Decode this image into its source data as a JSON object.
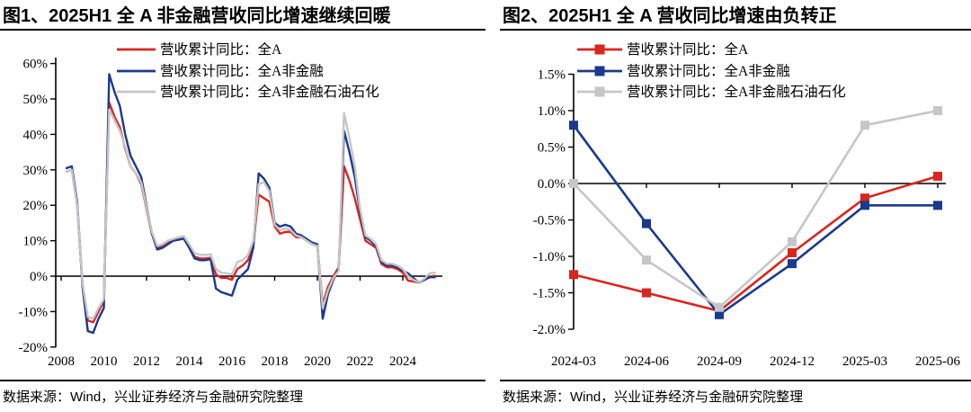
{
  "colors": {
    "red": "#d9261f",
    "blue": "#1b3a8c",
    "gray": "#c6c6c6",
    "axis": "#000000",
    "text": "#000000"
  },
  "panels": {
    "left": {
      "source_note": "数据来源：Wind，兴业证券经济与金融研究院整理"
    },
    "right": {
      "source_note": "数据来源：Wind，兴业证券经济与金融研究院整理"
    }
  },
  "chart_data": [
    {
      "type": "line",
      "title": "图1、2025H1 全 A 非金融营收同比增速继续回暖",
      "x": [
        2008.25,
        2008.5,
        2008.75,
        2009,
        2009.25,
        2009.5,
        2009.75,
        2010,
        2010.25,
        2010.5,
        2010.75,
        2011,
        2011.25,
        2011.5,
        2011.75,
        2012,
        2012.25,
        2012.5,
        2012.75,
        2013,
        2013.25,
        2013.5,
        2013.75,
        2014,
        2014.25,
        2014.5,
        2014.75,
        2015,
        2015.25,
        2015.5,
        2015.75,
        2016,
        2016.25,
        2016.5,
        2016.75,
        2017,
        2017.25,
        2017.5,
        2017.75,
        2018,
        2018.25,
        2018.5,
        2018.75,
        2019,
        2019.25,
        2019.5,
        2019.75,
        2020,
        2020.25,
        2020.5,
        2020.75,
        2021,
        2021.25,
        2021.5,
        2021.75,
        2022,
        2022.25,
        2022.5,
        2022.75,
        2023,
        2023.25,
        2023.5,
        2023.75,
        2024,
        2024.25,
        2024.5,
        2024.75,
        2025,
        2025.25,
        2025.5
      ],
      "series": [
        {
          "name": "营收累计同比：全A",
          "color_key": "red",
          "values": [
            29.5,
            30,
            20,
            -2,
            -12.5,
            -13,
            -10,
            -7,
            49,
            45,
            42,
            36,
            31,
            29,
            26,
            19,
            12,
            8,
            8.5,
            9.5,
            10,
            10.3,
            10.6,
            8,
            5.5,
            5,
            5,
            5.2,
            0.5,
            -0.5,
            -0.5,
            -1,
            2,
            3,
            4.5,
            9,
            23,
            22,
            21,
            14,
            12,
            12.5,
            12.5,
            11,
            11,
            10,
            9,
            8.5,
            -8,
            -3,
            0,
            2.5,
            31,
            27,
            22,
            16,
            10,
            9,
            8,
            3.5,
            2.5,
            2.5,
            2,
            1,
            -1.25,
            -1.5,
            -1.75,
            -0.95,
            -0.2,
            0.1
          ]
        },
        {
          "name": "营收累计同比：全A非金融",
          "color_key": "blue",
          "values": [
            30.5,
            31,
            21,
            -3,
            -15.5,
            -16,
            -12,
            -9,
            57,
            52,
            48,
            40,
            34,
            31,
            28,
            20,
            12,
            7.5,
            8,
            9,
            10,
            10.3,
            10.6,
            8,
            5,
            4.5,
            4.5,
            4.8,
            -3.5,
            -4.5,
            -5,
            -5.5,
            -1,
            0.5,
            2,
            8,
            29,
            27.5,
            25,
            15,
            14,
            14.5,
            14,
            12,
            11.5,
            10.5,
            9.5,
            9,
            -12,
            -5,
            -1,
            2,
            41,
            35,
            28,
            18,
            11,
            10,
            8.5,
            4,
            3,
            3,
            2.5,
            1.5,
            0.8,
            -0.55,
            -1.8,
            -1.1,
            -0.3,
            -0.3
          ]
        },
        {
          "name": "营收累计同比：全A非金融石油石化",
          "color_key": "gray",
          "values": [
            29.5,
            30,
            20,
            -2,
            -11.5,
            -12,
            -9,
            -6.5,
            47,
            44,
            41,
            36.5,
            31,
            29,
            26.5,
            19.5,
            12.5,
            8.5,
            9,
            10,
            10.5,
            11,
            11.3,
            9,
            6.5,
            6,
            6,
            6.2,
            2,
            1,
            0.8,
            0.5,
            4,
            4.5,
            6,
            10,
            26,
            26.5,
            24,
            14.5,
            13,
            13.5,
            13,
            11.5,
            11,
            10,
            9,
            8.5,
            -9,
            -4,
            -0.5,
            1.5,
            46,
            39,
            31,
            19,
            11.5,
            10.5,
            9,
            4.5,
            3.5,
            3.5,
            3,
            2,
            0,
            -1.05,
            -1.7,
            -0.8,
            0.8,
            1
          ]
        }
      ],
      "ylim": [
        -20,
        60
      ],
      "y_tick_values": [
        60,
        50,
        40,
        30,
        20,
        10,
        0,
        -10,
        -20
      ],
      "y_tick_labels": [
        "60%",
        "50%",
        "40%",
        "30%",
        "20%",
        "10%",
        "0%",
        "-10%",
        "-20%"
      ],
      "x_tick_values": [
        2008,
        2010,
        2012,
        2014,
        2016,
        2018,
        2020,
        2022,
        2024
      ],
      "x_tick_labels": [
        "2008",
        "2010",
        "2012",
        "2014",
        "2016",
        "2018",
        "2020",
        "2022",
        "2024"
      ],
      "grid": false,
      "legend_position": "top-center",
      "marker": "none"
    },
    {
      "type": "line",
      "title": "图2、2025H1 全 A 营收同比增速由负转正",
      "categories": [
        "2024-03",
        "2024-06",
        "2024-09",
        "2024-12",
        "2025-03",
        "2025-06"
      ],
      "series": [
        {
          "name": "营收累计同比：全A",
          "color_key": "red",
          "marker": "square",
          "values": [
            -1.25,
            -1.5,
            -1.75,
            -0.95,
            -0.2,
            0.1
          ]
        },
        {
          "name": "营收累计同比：全A非金融",
          "color_key": "blue",
          "marker": "square",
          "values": [
            0.8,
            -0.55,
            -1.8,
            -1.1,
            -0.3,
            -0.3
          ]
        },
        {
          "name": "营收累计同比：全A非金融石油石化",
          "color_key": "gray",
          "marker": "square",
          "values": [
            0.0,
            -1.05,
            -1.7,
            -0.8,
            0.8,
            1.0
          ]
        }
      ],
      "ylim": [
        -2.0,
        1.5
      ],
      "y_tick_values": [
        1.5,
        1.0,
        0.5,
        0.0,
        -0.5,
        -1.0,
        -1.5,
        -2.0
      ],
      "y_tick_labels": [
        "1.5%",
        "1.0%",
        "0.5%",
        "0.0%",
        "-0.5%",
        "-1.0%",
        "-1.5%",
        "-2.0%"
      ],
      "grid": false,
      "legend_position": "top-center",
      "marker": "square"
    }
  ]
}
